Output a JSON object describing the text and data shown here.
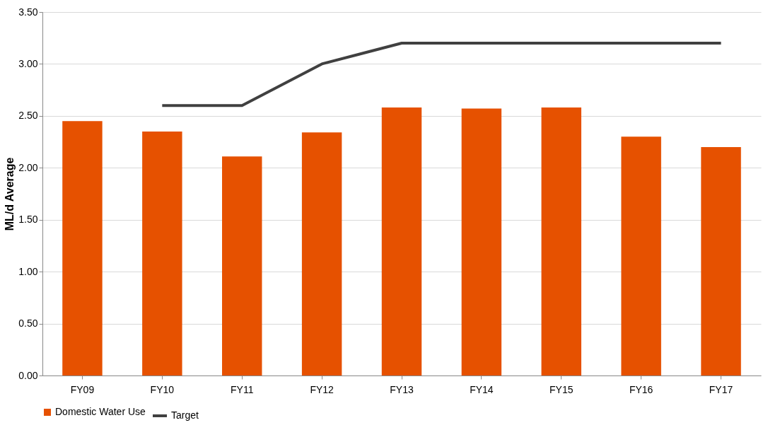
{
  "chart_data": {
    "type": "bar",
    "ylabel": "ML/d Average",
    "categories": [
      "FY09",
      "FY10",
      "FY11",
      "FY12",
      "FY13",
      "FY14",
      "FY15",
      "FY16",
      "FY17"
    ],
    "series": [
      {
        "name": "Domestic Water Use",
        "color": "#e65100",
        "values": [
          2.45,
          2.35,
          2.11,
          2.34,
          2.58,
          2.57,
          2.58,
          2.3,
          2.2
        ]
      },
      {
        "name": "Target",
        "type": "line",
        "color": "#404040",
        "values": [
          null,
          2.6,
          2.6,
          3.0,
          3.2,
          3.2,
          3.2,
          3.2,
          3.2
        ]
      }
    ],
    "ylim": [
      0,
      3.5
    ],
    "yticks": [
      {
        "value": 0,
        "label": "0.00"
      },
      {
        "value": 0.5,
        "label": "0.50"
      },
      {
        "value": 1,
        "label": "1.00"
      },
      {
        "value": 1.5,
        "label": "1.50"
      },
      {
        "value": 2,
        "label": "2.00"
      },
      {
        "value": 2.5,
        "label": "2.50"
      },
      {
        "value": 3,
        "label": "3.00"
      },
      {
        "value": 3.5,
        "label": "3.50"
      }
    ],
    "grid": "y",
    "legend": "bottom",
    "marker": "none",
    "line_style": "solid"
  }
}
